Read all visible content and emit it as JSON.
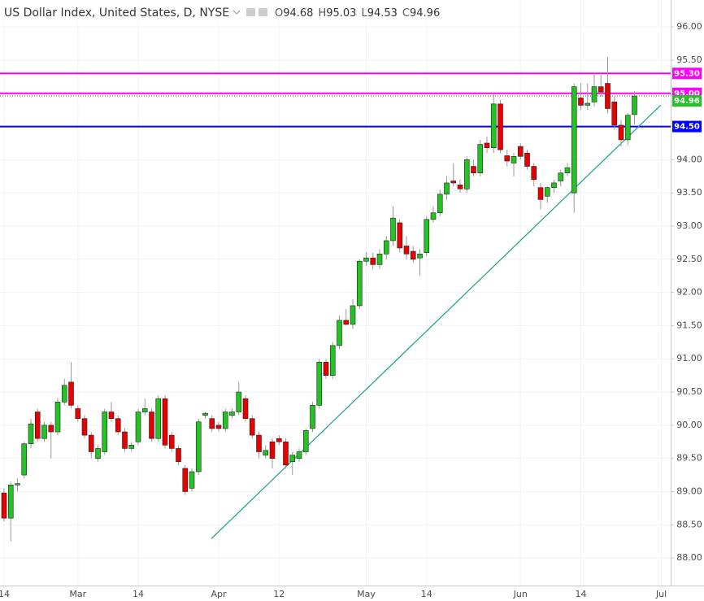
{
  "chart_data": {
    "type": "candlestick",
    "title": "US Dollar Index, United States, D, NYSE",
    "ohlc_header": [
      {
        "label": "O",
        "value": 94.68
      },
      {
        "label": "H",
        "value": 95.03
      },
      {
        "label": "L",
        "value": 94.53
      },
      {
        "label": "C",
        "value": 94.96
      }
    ],
    "categories": [
      "14",
      null,
      null,
      null,
      null,
      null,
      null,
      null,
      null,
      null,
      null,
      "Mar",
      null,
      null,
      null,
      null,
      null,
      null,
      null,
      null,
      "14",
      null,
      null,
      null,
      null,
      null,
      null,
      null,
      null,
      null,
      null,
      null,
      "Apr",
      null,
      null,
      null,
      null,
      null,
      null,
      null,
      null,
      "12",
      null,
      null,
      null,
      null,
      null,
      null,
      null,
      null,
      null,
      null,
      null,
      null,
      "May",
      null,
      null,
      null,
      null,
      null,
      null,
      null,
      null,
      "14",
      null,
      null,
      null,
      null,
      null,
      null,
      null,
      null,
      null,
      null,
      null,
      null,
      null,
      "Jun",
      null,
      null,
      null,
      null,
      null,
      null,
      null,
      null,
      "14",
      null,
      null,
      null,
      null,
      null,
      null,
      null,
      null,
      null,
      null,
      null,
      "Jul"
    ],
    "open": [
      88.98,
      88.6,
      89.1,
      89.25,
      89.72,
      90.2,
      89.8,
      90.0,
      89.9,
      90.35,
      90.65,
      90.25,
      90.1,
      89.85,
      89.5,
      89.6,
      90.2,
      90.1,
      89.9,
      89.65,
      89.75,
      90.2,
      90.2,
      89.8,
      90.4,
      89.85,
      89.65,
      89.35,
      89.05,
      89.3,
      90.15,
      90.1,
      90.0,
      89.95,
      90.15,
      90.2,
      90.4,
      90.1,
      89.85,
      89.55,
      89.75,
      89.8,
      89.75,
      89.45,
      89.5,
      89.6,
      89.95,
      90.3,
      90.95,
      90.75,
      91.2,
      91.58,
      91.52,
      91.8,
      92.47,
      92.52,
      92.42,
      92.58,
      92.78,
      93.05,
      92.7,
      92.62,
      92.52,
      92.6,
      93.1,
      93.2,
      93.48,
      93.68,
      93.62,
      93.56,
      93.9,
      93.8,
      94.25,
      94.18,
      94.84,
      94.06,
      93.95,
      94.2,
      94.1,
      93.9,
      93.58,
      93.45,
      93.58,
      93.68,
      93.8,
      93.5,
      94.93,
      94.82,
      94.87,
      95.1,
      95.15,
      94.87,
      94.52,
      94.3,
      94.68,
      null,
      null,
      null,
      null
    ],
    "high": [
      89.05,
      89.15,
      89.2,
      89.75,
      90.1,
      90.25,
      90.05,
      90.05,
      90.4,
      90.7,
      90.95,
      90.3,
      90.15,
      89.9,
      89.7,
      90.25,
      90.35,
      90.15,
      89.95,
      89.75,
      90.25,
      90.4,
      90.25,
      90.45,
      90.45,
      89.9,
      89.7,
      89.4,
      89.35,
      90.1,
      90.2,
      90.15,
      90.05,
      90.25,
      90.25,
      90.65,
      90.45,
      90.15,
      89.9,
      89.7,
      89.8,
      89.85,
      89.8,
      89.6,
      89.65,
      89.95,
      90.35,
      91.0,
      91.0,
      91.25,
      91.65,
      91.75,
      91.9,
      92.5,
      92.6,
      92.6,
      92.65,
      92.85,
      93.3,
      93.1,
      92.85,
      92.7,
      92.65,
      93.15,
      93.3,
      93.55,
      93.75,
      93.95,
      93.7,
      94.05,
      94.0,
      94.3,
      94.35,
      95.0,
      94.9,
      94.15,
      94.1,
      94.25,
      94.15,
      93.95,
      93.65,
      93.6,
      93.7,
      93.85,
      93.95,
      95.15,
      95.15,
      95.15,
      95.3,
      95.28,
      95.55,
      94.95,
      94.6,
      94.7,
      95.03,
      null,
      null,
      null,
      null
    ],
    "low": [
      88.55,
      88.25,
      89.0,
      89.2,
      89.65,
      89.75,
      89.75,
      89.5,
      89.85,
      90.3,
      90.25,
      90.05,
      89.8,
      89.5,
      89.45,
      89.55,
      90.05,
      89.85,
      89.6,
      89.6,
      89.7,
      90.15,
      89.75,
      89.75,
      89.65,
      89.6,
      89.4,
      88.95,
      89.0,
      89.25,
      90.1,
      89.9,
      89.9,
      89.9,
      90.1,
      90.15,
      90.05,
      89.8,
      89.5,
      89.5,
      89.35,
      89.7,
      89.35,
      89.25,
      89.45,
      89.55,
      89.9,
      90.25,
      90.7,
      90.7,
      91.15,
      91.5,
      91.45,
      91.75,
      92.4,
      92.35,
      92.35,
      92.5,
      92.7,
      92.6,
      92.5,
      92.45,
      92.25,
      92.55,
      93.05,
      93.15,
      93.4,
      93.6,
      93.5,
      93.5,
      93.75,
      93.75,
      94.1,
      94.1,
      94.1,
      93.9,
      93.75,
      94.0,
      93.85,
      93.6,
      93.25,
      93.35,
      93.5,
      93.6,
      93.75,
      93.2,
      94.75,
      94.75,
      94.8,
      94.95,
      94.7,
      94.45,
      94.2,
      94.22,
      94.53,
      null,
      null,
      null,
      null
    ],
    "close": [
      88.6,
      89.1,
      89.12,
      89.72,
      90.02,
      89.8,
      90.0,
      89.9,
      90.35,
      90.6,
      90.3,
      90.1,
      89.85,
      89.6,
      89.65,
      90.2,
      90.1,
      89.9,
      89.65,
      89.7,
      90.2,
      90.25,
      89.8,
      90.4,
      89.7,
      89.65,
      89.45,
      89.0,
      89.3,
      90.05,
      90.18,
      89.95,
      89.95,
      90.2,
      90.2,
      90.5,
      90.1,
      89.85,
      89.6,
      89.62,
      89.5,
      89.75,
      89.4,
      89.55,
      89.6,
      89.92,
      90.3,
      90.95,
      90.75,
      91.2,
      91.58,
      91.52,
      91.8,
      92.47,
      92.52,
      92.42,
      92.58,
      92.78,
      93.12,
      92.67,
      92.58,
      92.5,
      92.58,
      93.1,
      93.2,
      93.48,
      93.65,
      93.65,
      93.56,
      94.0,
      93.8,
      94.23,
      94.18,
      94.84,
      94.15,
      93.98,
      94.05,
      94.05,
      93.9,
      93.7,
      93.4,
      93.58,
      93.65,
      93.8,
      93.88,
      95.1,
      94.82,
      94.85,
      95.1,
      95.02,
      94.77,
      94.52,
      94.3,
      94.67,
      94.96,
      null,
      null,
      null,
      null
    ],
    "up_color": "#22c322",
    "down_color": "#e80000",
    "ylim": [
      87.5847,
      96.4059
    ],
    "yticks": [
      {
        "value": 88,
        "label": "88.00"
      },
      {
        "value": 88.5,
        "label": "88.50"
      },
      {
        "value": 89,
        "label": "89.00"
      },
      {
        "value": 89.5,
        "label": "89.50"
      },
      {
        "value": 90,
        "label": "90.00"
      },
      {
        "value": 90.5,
        "label": "90.50"
      },
      {
        "value": 91,
        "label": "91.00"
      },
      {
        "value": 91.5,
        "label": "91.50"
      },
      {
        "value": 92,
        "label": "92.00"
      },
      {
        "value": 92.5,
        "label": "92.50"
      },
      {
        "value": 93,
        "label": "93.00"
      },
      {
        "value": 93.5,
        "label": "93.50"
      },
      {
        "value": 94,
        "label": "94.00"
      },
      {
        "value": 94.5,
        "label": "94.50"
      },
      {
        "value": 95,
        "label": "95.00"
      },
      {
        "value": 95.5,
        "label": "95.50"
      },
      {
        "value": 96,
        "label": "96.00"
      }
    ],
    "grid": true,
    "levels": [
      {
        "value": 95.3,
        "label": "95.30",
        "color": "#ff00ff"
      },
      {
        "value": 95.0,
        "label": "95.00",
        "color": "#ff00ff"
      },
      {
        "value": 94.5,
        "label": "94.50",
        "color": "#0000ff"
      }
    ],
    "last_price": {
      "value": 94.96,
      "label": "94.96",
      "color": "#22c322"
    },
    "trendline": {
      "x": [
        30.9,
        97.9
      ],
      "y": [
        88.29,
        94.82
      ],
      "color": "#17a085"
    }
  }
}
